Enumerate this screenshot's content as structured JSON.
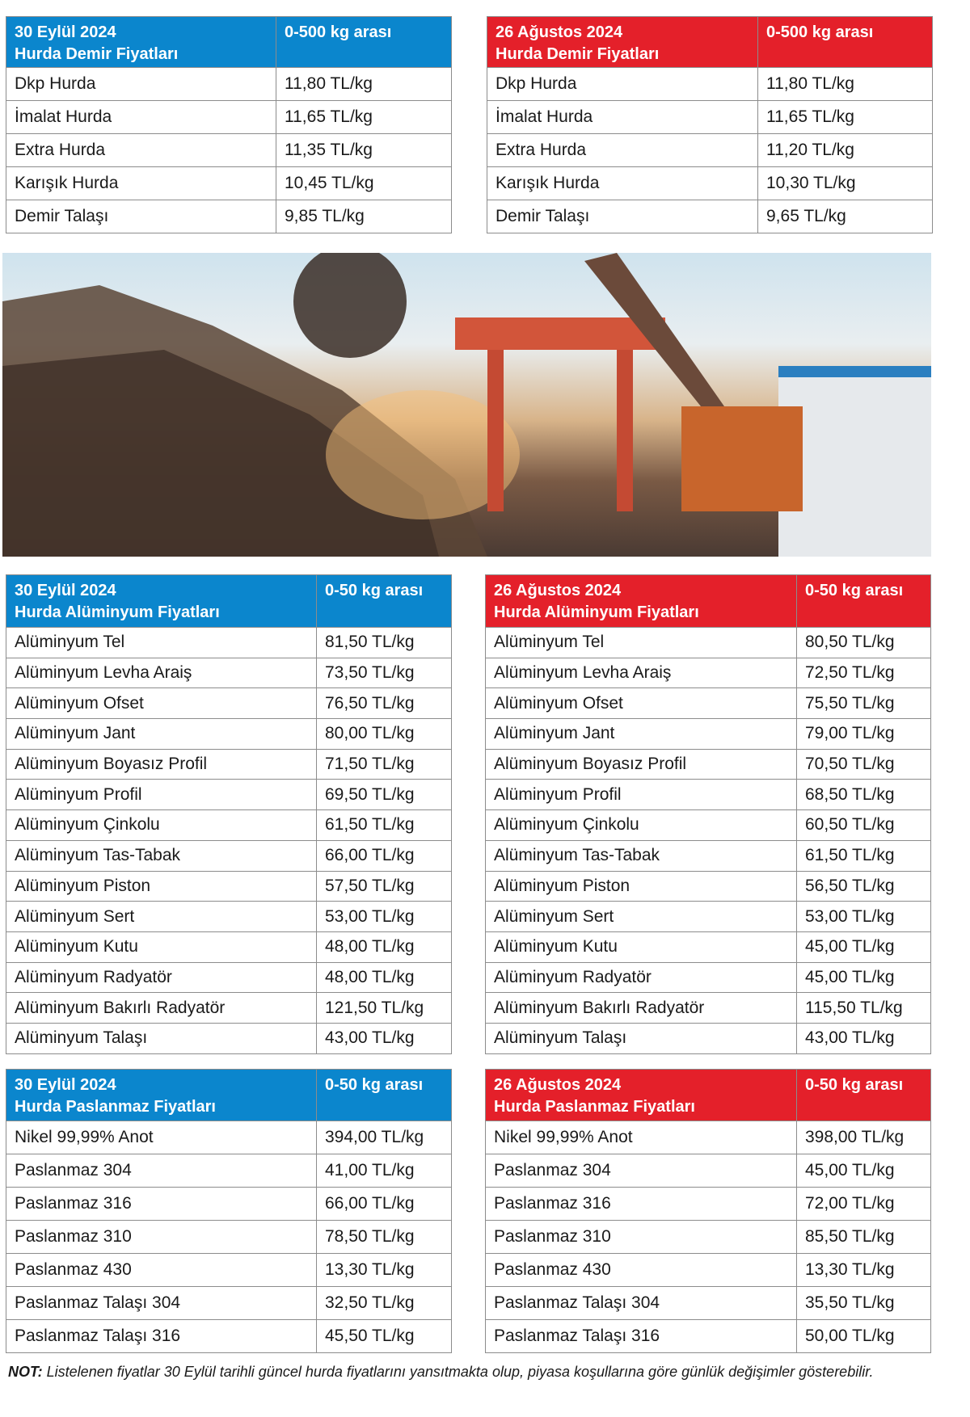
{
  "colors": {
    "blue_header": "#0b86cd",
    "red_header": "#e4202a"
  },
  "tables": [
    {
      "id": "demir-30-eylul",
      "theme": "blue",
      "title1": "30 Eylül  2024",
      "title2": "Hurda Demir Fiyatları",
      "range": "0-500 kg arası",
      "rows": [
        [
          "Dkp Hurda",
          "11,80 TL/kg"
        ],
        [
          "İmalat Hurda",
          "11,65 TL/kg"
        ],
        [
          "Extra Hurda",
          "11,35 TL/kg"
        ],
        [
          "Karışık Hurda",
          "10,45 TL/kg"
        ],
        [
          "Demir Talaşı",
          "9,85 TL/kg"
        ]
      ]
    },
    {
      "id": "demir-26-agustos",
      "theme": "red",
      "title1": "26 Ağustos 2024",
      "title2": "Hurda Demir Fiyatları",
      "range": "0-500 kg arası",
      "rows": [
        [
          "Dkp Hurda",
          "11,80 TL/kg"
        ],
        [
          "İmalat Hurda",
          "11,65 TL/kg"
        ],
        [
          "Extra Hurda",
          "11,20 TL/kg"
        ],
        [
          "Karışık Hurda",
          "10,30 TL/kg"
        ],
        [
          "Demir Talaşı",
          "9,65 TL/kg"
        ]
      ]
    },
    {
      "id": "aluminyum-30-eylul",
      "theme": "blue",
      "title1": "30 Eylül 2024",
      "title2": "Hurda Alüminyum Fiyatları",
      "range": "0-50 kg arası",
      "rows": [
        [
          "Alüminyum Tel",
          "81,50 TL/kg"
        ],
        [
          "Alüminyum Levha Araiş",
          "73,50 TL/kg"
        ],
        [
          "Alüminyum Ofset",
          "76,50 TL/kg"
        ],
        [
          "Alüminyum Jant",
          "80,00 TL/kg"
        ],
        [
          "Alüminyum Boyasız Profil",
          "71,50 TL/kg"
        ],
        [
          "Alüminyum Profil",
          "69,50 TL/kg"
        ],
        [
          "Alüminyum Çinkolu",
          "61,50 TL/kg"
        ],
        [
          "Alüminyum Tas-Tabak",
          "66,00 TL/kg"
        ],
        [
          "Alüminyum Piston",
          "57,50 TL/kg"
        ],
        [
          "Alüminyum Sert",
          "53,00 TL/kg"
        ],
        [
          "Alüminyum Kutu",
          "48,00 TL/kg"
        ],
        [
          "Alüminyum Radyatör",
          "48,00 TL/kg"
        ],
        [
          "Alüminyum Bakırlı Radyatör",
          "121,50 TL/kg"
        ],
        [
          "Alüminyum Talaşı",
          "43,00 TL/kg"
        ]
      ]
    },
    {
      "id": "aluminyum-26-agustos",
      "theme": "red",
      "title1": "26 Ağustos 2024",
      "title2": "Hurda Alüminyum Fiyatları",
      "range": "0-50 kg arası",
      "rows": [
        [
          "Alüminyum Tel",
          "80,50 TL/kg"
        ],
        [
          "Alüminyum Levha Araiş",
          "72,50 TL/kg"
        ],
        [
          "Alüminyum Ofset",
          "75,50 TL/kg"
        ],
        [
          "Alüminyum Jant",
          "79,00 TL/kg"
        ],
        [
          "Alüminyum Boyasız Profil",
          "70,50 TL/kg"
        ],
        [
          "Alüminyum Profil",
          "68,50 TL/kg"
        ],
        [
          "Alüminyum Çinkolu",
          "60,50 TL/kg"
        ],
        [
          "Alüminyum Tas-Tabak",
          "61,50 TL/kg"
        ],
        [
          "Alüminyum Piston",
          "56,50 TL/kg"
        ],
        [
          "Alüminyum Sert",
          "53,00 TL/kg"
        ],
        [
          "Alüminyum Kutu",
          "45,00 TL/kg"
        ],
        [
          "Alüminyum Radyatör",
          "45,00 TL/kg"
        ],
        [
          "Alüminyum Bakırlı Radyatör",
          "115,50 TL/kg"
        ],
        [
          "Alüminyum Talaşı",
          "43,00 TL/kg"
        ]
      ]
    },
    {
      "id": "paslanmaz-30-eylul",
      "theme": "blue",
      "title1": "30 Eylül 2024",
      "title2": "Hurda Paslanmaz Fiyatları",
      "range": "0-50 kg arası",
      "rows": [
        [
          "Nikel 99,99% Anot",
          "394,00 TL/kg"
        ],
        [
          "Paslanmaz 304",
          "41,00 TL/kg"
        ],
        [
          "Paslanmaz 316",
          "66,00 TL/kg"
        ],
        [
          "Paslanmaz 310",
          "78,50 TL/kg"
        ],
        [
          "Paslanmaz 430",
          "13,30 TL/kg"
        ],
        [
          "Paslanmaz Talaşı 304",
          "32,50 TL/kg"
        ],
        [
          "Paslanmaz Talaşı 316",
          "45,50 TL/kg"
        ]
      ]
    },
    {
      "id": "paslanmaz-26-agustos",
      "theme": "red",
      "title1": "26 Ağustos 2024",
      "title2": "Hurda Paslanmaz Fiyatları",
      "range": "0-50 kg arası",
      "rows": [
        [
          "Nikel 99,99% Anot",
          "398,00 TL/kg"
        ],
        [
          "Paslanmaz 304",
          "45,00 TL/kg"
        ],
        [
          "Paslanmaz 316",
          "72,00 TL/kg"
        ],
        [
          "Paslanmaz 310",
          "85,50 TL/kg"
        ],
        [
          "Paslanmaz 430",
          "13,30 TL/kg"
        ],
        [
          "Paslanmaz Talaşı 304",
          "35,50 TL/kg"
        ],
        [
          "Paslanmaz Talaşı 316",
          "50,00 TL/kg"
        ]
      ]
    }
  ],
  "photo": {
    "subject": "scrap-metal-yard-with-excavator"
  },
  "note": {
    "label": "NOT:",
    "text": " Listelenen fiyatlar 30 Eylül tarihli güncel hurda fiyatlarını yansıtmakta olup, piyasa koşullarına göre günlük değişimler gösterebilir."
  }
}
